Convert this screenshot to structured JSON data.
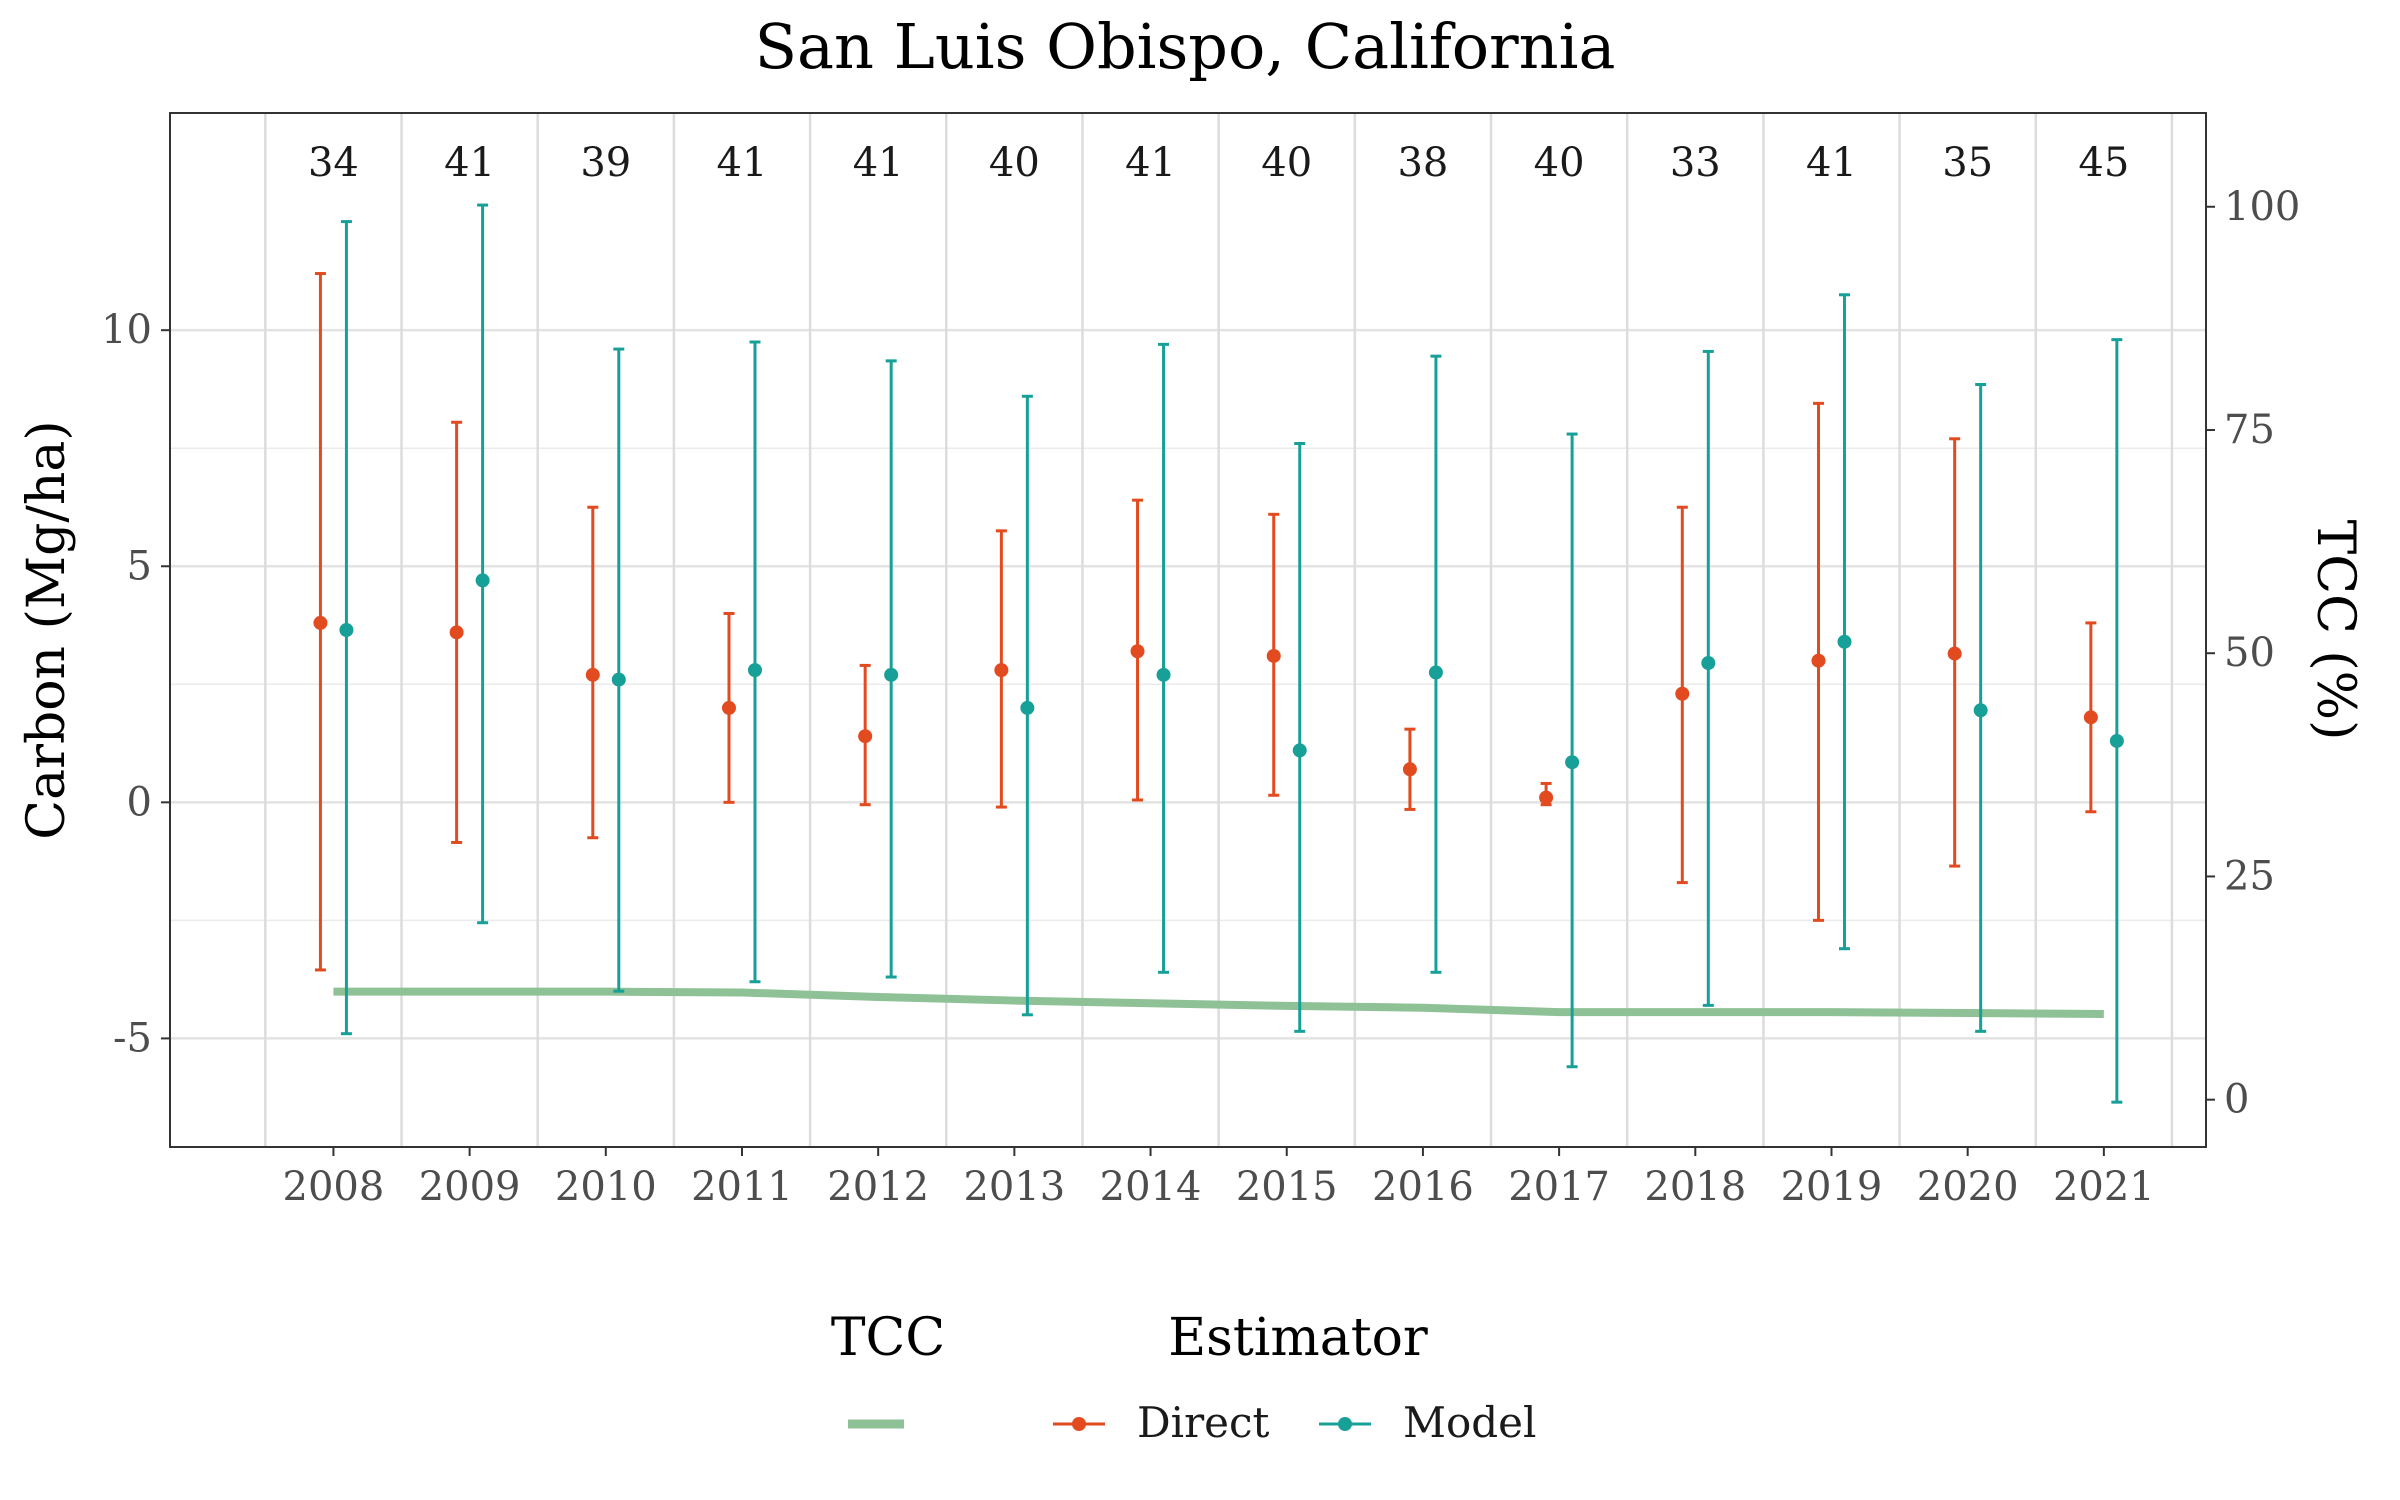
{
  "chart_data": {
    "type": "line",
    "title": "San Luis Obispo, California",
    "xlabel": "",
    "ylabel": "Carbon (Mg/ha)",
    "y2label": "TCC (%)",
    "categories": [
      "2008",
      "2009",
      "2010",
      "2011",
      "2012",
      "2013",
      "2014",
      "2015",
      "2016",
      "2017",
      "2018",
      "2019",
      "2020",
      "2021"
    ],
    "counts": [
      "34",
      "41",
      "39",
      "41",
      "41",
      "40",
      "41",
      "40",
      "38",
      "40",
      "33",
      "41",
      "35",
      "45"
    ],
    "ylim": [
      -7.3,
      14.6
    ],
    "yticks": [
      -5,
      0,
      5,
      10
    ],
    "y2lim": [
      -5.3,
      110.5
    ],
    "y2ticks": [
      0,
      25,
      50,
      75,
      100
    ],
    "grid": true,
    "series": [
      {
        "name": "Direct",
        "color": "#e24a1f",
        "values": [
          3.8,
          3.6,
          2.7,
          2.0,
          1.4,
          2.8,
          3.2,
          3.1,
          0.7,
          0.1,
          2.3,
          3.0,
          3.15,
          1.8
        ],
        "lower": [
          -3.55,
          -0.85,
          -0.75,
          0.0,
          -0.05,
          -0.1,
          0.05,
          0.15,
          -0.15,
          -0.05,
          -1.7,
          -2.5,
          -1.35,
          -0.2
        ],
        "upper": [
          11.2,
          8.05,
          6.25,
          4.0,
          2.9,
          5.75,
          6.4,
          6.1,
          1.55,
          0.4,
          6.25,
          8.45,
          7.7,
          3.8
        ]
      },
      {
        "name": "Model",
        "color": "#16a098",
        "values": [
          3.65,
          4.7,
          2.6,
          2.8,
          2.7,
          2.0,
          2.7,
          1.1,
          2.75,
          0.85,
          2.95,
          3.4,
          1.95,
          1.3
        ],
        "lower": [
          -4.9,
          -2.55,
          -4.0,
          -3.8,
          -3.7,
          -4.5,
          -3.6,
          -4.85,
          -3.6,
          -5.6,
          -4.3,
          -3.1,
          -4.85,
          -6.35
        ],
        "upper": [
          12.3,
          12.65,
          9.6,
          9.75,
          9.35,
          8.6,
          9.7,
          7.6,
          9.45,
          7.8,
          9.55,
          10.75,
          8.85,
          9.8
        ]
      }
    ],
    "tcc": {
      "name": "TCC",
      "color": "#8fc197",
      "values": [
        12.1,
        12.1,
        12.1,
        12.0,
        11.5,
        11.1,
        10.8,
        10.5,
        10.3,
        9.8,
        9.8,
        9.8,
        9.7,
        9.6
      ]
    },
    "legend": {
      "placement": "bottom",
      "tcc_title": "TCC",
      "estimator_title": "Estimator",
      "labels": [
        "Direct",
        "Model"
      ]
    }
  }
}
